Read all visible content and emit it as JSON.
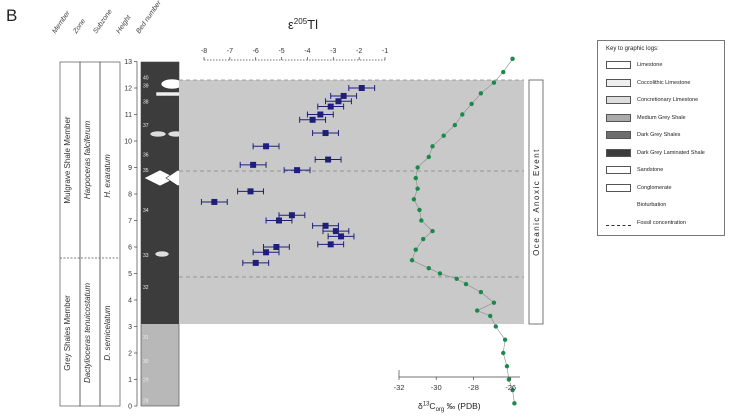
{
  "panel_label": "B",
  "column_headers": [
    "Member",
    "Zone",
    "Subzone",
    "Height",
    "Bed number"
  ],
  "members": [
    "Mulgrave Shale Member",
    "Grey Shales Member"
  ],
  "zones": [
    "Harpoceras falciferum",
    "Dactylioceras tenuicostatum"
  ],
  "subzones": [
    "H. exaratum",
    "D. semicelatum"
  ],
  "beds": [
    "40",
    "39",
    "38",
    "37",
    "36",
    "35",
    "34",
    "33",
    "32",
    "31",
    "30",
    "29",
    "28"
  ],
  "event_label": "Oceanic Anoxic Event",
  "key": {
    "title": "Key to graphic logs:",
    "items": [
      {
        "label": "Limestone",
        "color": "#ffffff"
      },
      {
        "label": "Coccolithic Limestone",
        "color": "#eeeeee"
      },
      {
        "label": "Concretionary Limestone",
        "color": "#dddddd"
      },
      {
        "label": "Medium Grey Shale",
        "color": "#aaaaaa"
      },
      {
        "label": "Dark Grey Shales",
        "color": "#6e6e6e"
      },
      {
        "label": "Dark Grey Laminated Shale",
        "color": "#3c3c3c"
      },
      {
        "label": "Sandstone",
        "color": "#ffffff"
      },
      {
        "label": "Conglomerate",
        "color": "#ffffff"
      },
      {
        "label": "Bioturbation",
        "color": "#ffffff"
      },
      {
        "label": "Fossil concentration",
        "color": "#ffffff"
      }
    ]
  },
  "chart_data": [
    {
      "type": "scatter",
      "title": "",
      "xlabel_main": "ε",
      "xlabel_sup": "205",
      "xlabel_tail": "Tl",
      "xlim": [
        -8,
        -1
      ],
      "x_ticks": [
        "-8",
        "-7",
        "-6",
        "-5",
        "-4",
        "-3",
        "-2",
        "-1"
      ],
      "ylim": [
        0,
        13
      ],
      "y_ticks": [
        "0",
        "1",
        "2",
        "3",
        "4",
        "5",
        "6",
        "7",
        "8",
        "9",
        "10",
        "11",
        "12",
        "13"
      ],
      "color": "#1f1f7a",
      "points": [
        {
          "x": -1.9,
          "y": 12.0,
          "err": 0.5
        },
        {
          "x": -2.6,
          "y": 11.7,
          "err": 0.5
        },
        {
          "x": -2.8,
          "y": 11.5,
          "err": 0.5
        },
        {
          "x": -3.1,
          "y": 11.3,
          "err": 0.5
        },
        {
          "x": -3.5,
          "y": 11.0,
          "err": 0.5
        },
        {
          "x": -3.8,
          "y": 10.8,
          "err": 0.5
        },
        {
          "x": -3.3,
          "y": 10.3,
          "err": 0.5
        },
        {
          "x": -5.6,
          "y": 9.8,
          "err": 0.5
        },
        {
          "x": -3.2,
          "y": 9.3,
          "err": 0.5
        },
        {
          "x": -6.1,
          "y": 9.1,
          "err": 0.5
        },
        {
          "x": -4.4,
          "y": 8.9,
          "err": 0.5
        },
        {
          "x": -6.2,
          "y": 8.1,
          "err": 0.5
        },
        {
          "x": -7.6,
          "y": 7.7,
          "err": 0.5
        },
        {
          "x": -4.6,
          "y": 7.2,
          "err": 0.5
        },
        {
          "x": -5.1,
          "y": 7.0,
          "err": 0.5
        },
        {
          "x": -3.3,
          "y": 6.8,
          "err": 0.5
        },
        {
          "x": -2.9,
          "y": 6.6,
          "err": 0.5
        },
        {
          "x": -2.7,
          "y": 6.4,
          "err": 0.5
        },
        {
          "x": -5.2,
          "y": 6.0,
          "err": 0.5
        },
        {
          "x": -5.6,
          "y": 5.8,
          "err": 0.5
        },
        {
          "x": -3.1,
          "y": 6.1,
          "err": 0.5
        },
        {
          "x": -6.0,
          "y": 5.4,
          "err": 0.5
        }
      ]
    },
    {
      "type": "line",
      "title": "",
      "xlabel_main": "δ",
      "xlabel_sup": "13",
      "xlabel_mid": "C",
      "xlabel_sub": "org",
      "xlabel_tail": " ‰ (PDB)",
      "xlim": [
        -32,
        -25.5
      ],
      "x_ticks": [
        "-32",
        "-30",
        "-28",
        "-26"
      ],
      "x_tick_values": [
        -32,
        -30,
        -28,
        -26
      ],
      "color": "#1a8a4a",
      "points": [
        {
          "x": -25.8,
          "y": 0.1
        },
        {
          "x": -25.9,
          "y": 0.6
        },
        {
          "x": -26.1,
          "y": 1.0
        },
        {
          "x": -26.2,
          "y": 1.5
        },
        {
          "x": -26.4,
          "y": 2.0
        },
        {
          "x": -26.3,
          "y": 2.5
        },
        {
          "x": -26.8,
          "y": 3.0
        },
        {
          "x": -27.1,
          "y": 3.4
        },
        {
          "x": -27.8,
          "y": 3.6
        },
        {
          "x": -26.9,
          "y": 3.9
        },
        {
          "x": -27.6,
          "y": 4.3
        },
        {
          "x": -28.4,
          "y": 4.6
        },
        {
          "x": -28.9,
          "y": 4.8
        },
        {
          "x": -29.8,
          "y": 5.0
        },
        {
          "x": -30.4,
          "y": 5.2
        },
        {
          "x": -31.3,
          "y": 5.5
        },
        {
          "x": -31.1,
          "y": 5.9
        },
        {
          "x": -30.7,
          "y": 6.3
        },
        {
          "x": -30.2,
          "y": 6.6
        },
        {
          "x": -30.8,
          "y": 7.0
        },
        {
          "x": -30.9,
          "y": 7.4
        },
        {
          "x": -31.2,
          "y": 7.8
        },
        {
          "x": -31.0,
          "y": 8.2
        },
        {
          "x": -31.1,
          "y": 8.6
        },
        {
          "x": -31.0,
          "y": 9.0
        },
        {
          "x": -30.4,
          "y": 9.4
        },
        {
          "x": -30.2,
          "y": 9.8
        },
        {
          "x": -29.6,
          "y": 10.2
        },
        {
          "x": -29.0,
          "y": 10.6
        },
        {
          "x": -28.6,
          "y": 11.0
        },
        {
          "x": -28.1,
          "y": 11.4
        },
        {
          "x": -27.6,
          "y": 11.8
        },
        {
          "x": -26.9,
          "y": 12.2
        },
        {
          "x": -26.4,
          "y": 12.6
        },
        {
          "x": -25.9,
          "y": 13.1
        }
      ]
    }
  ]
}
